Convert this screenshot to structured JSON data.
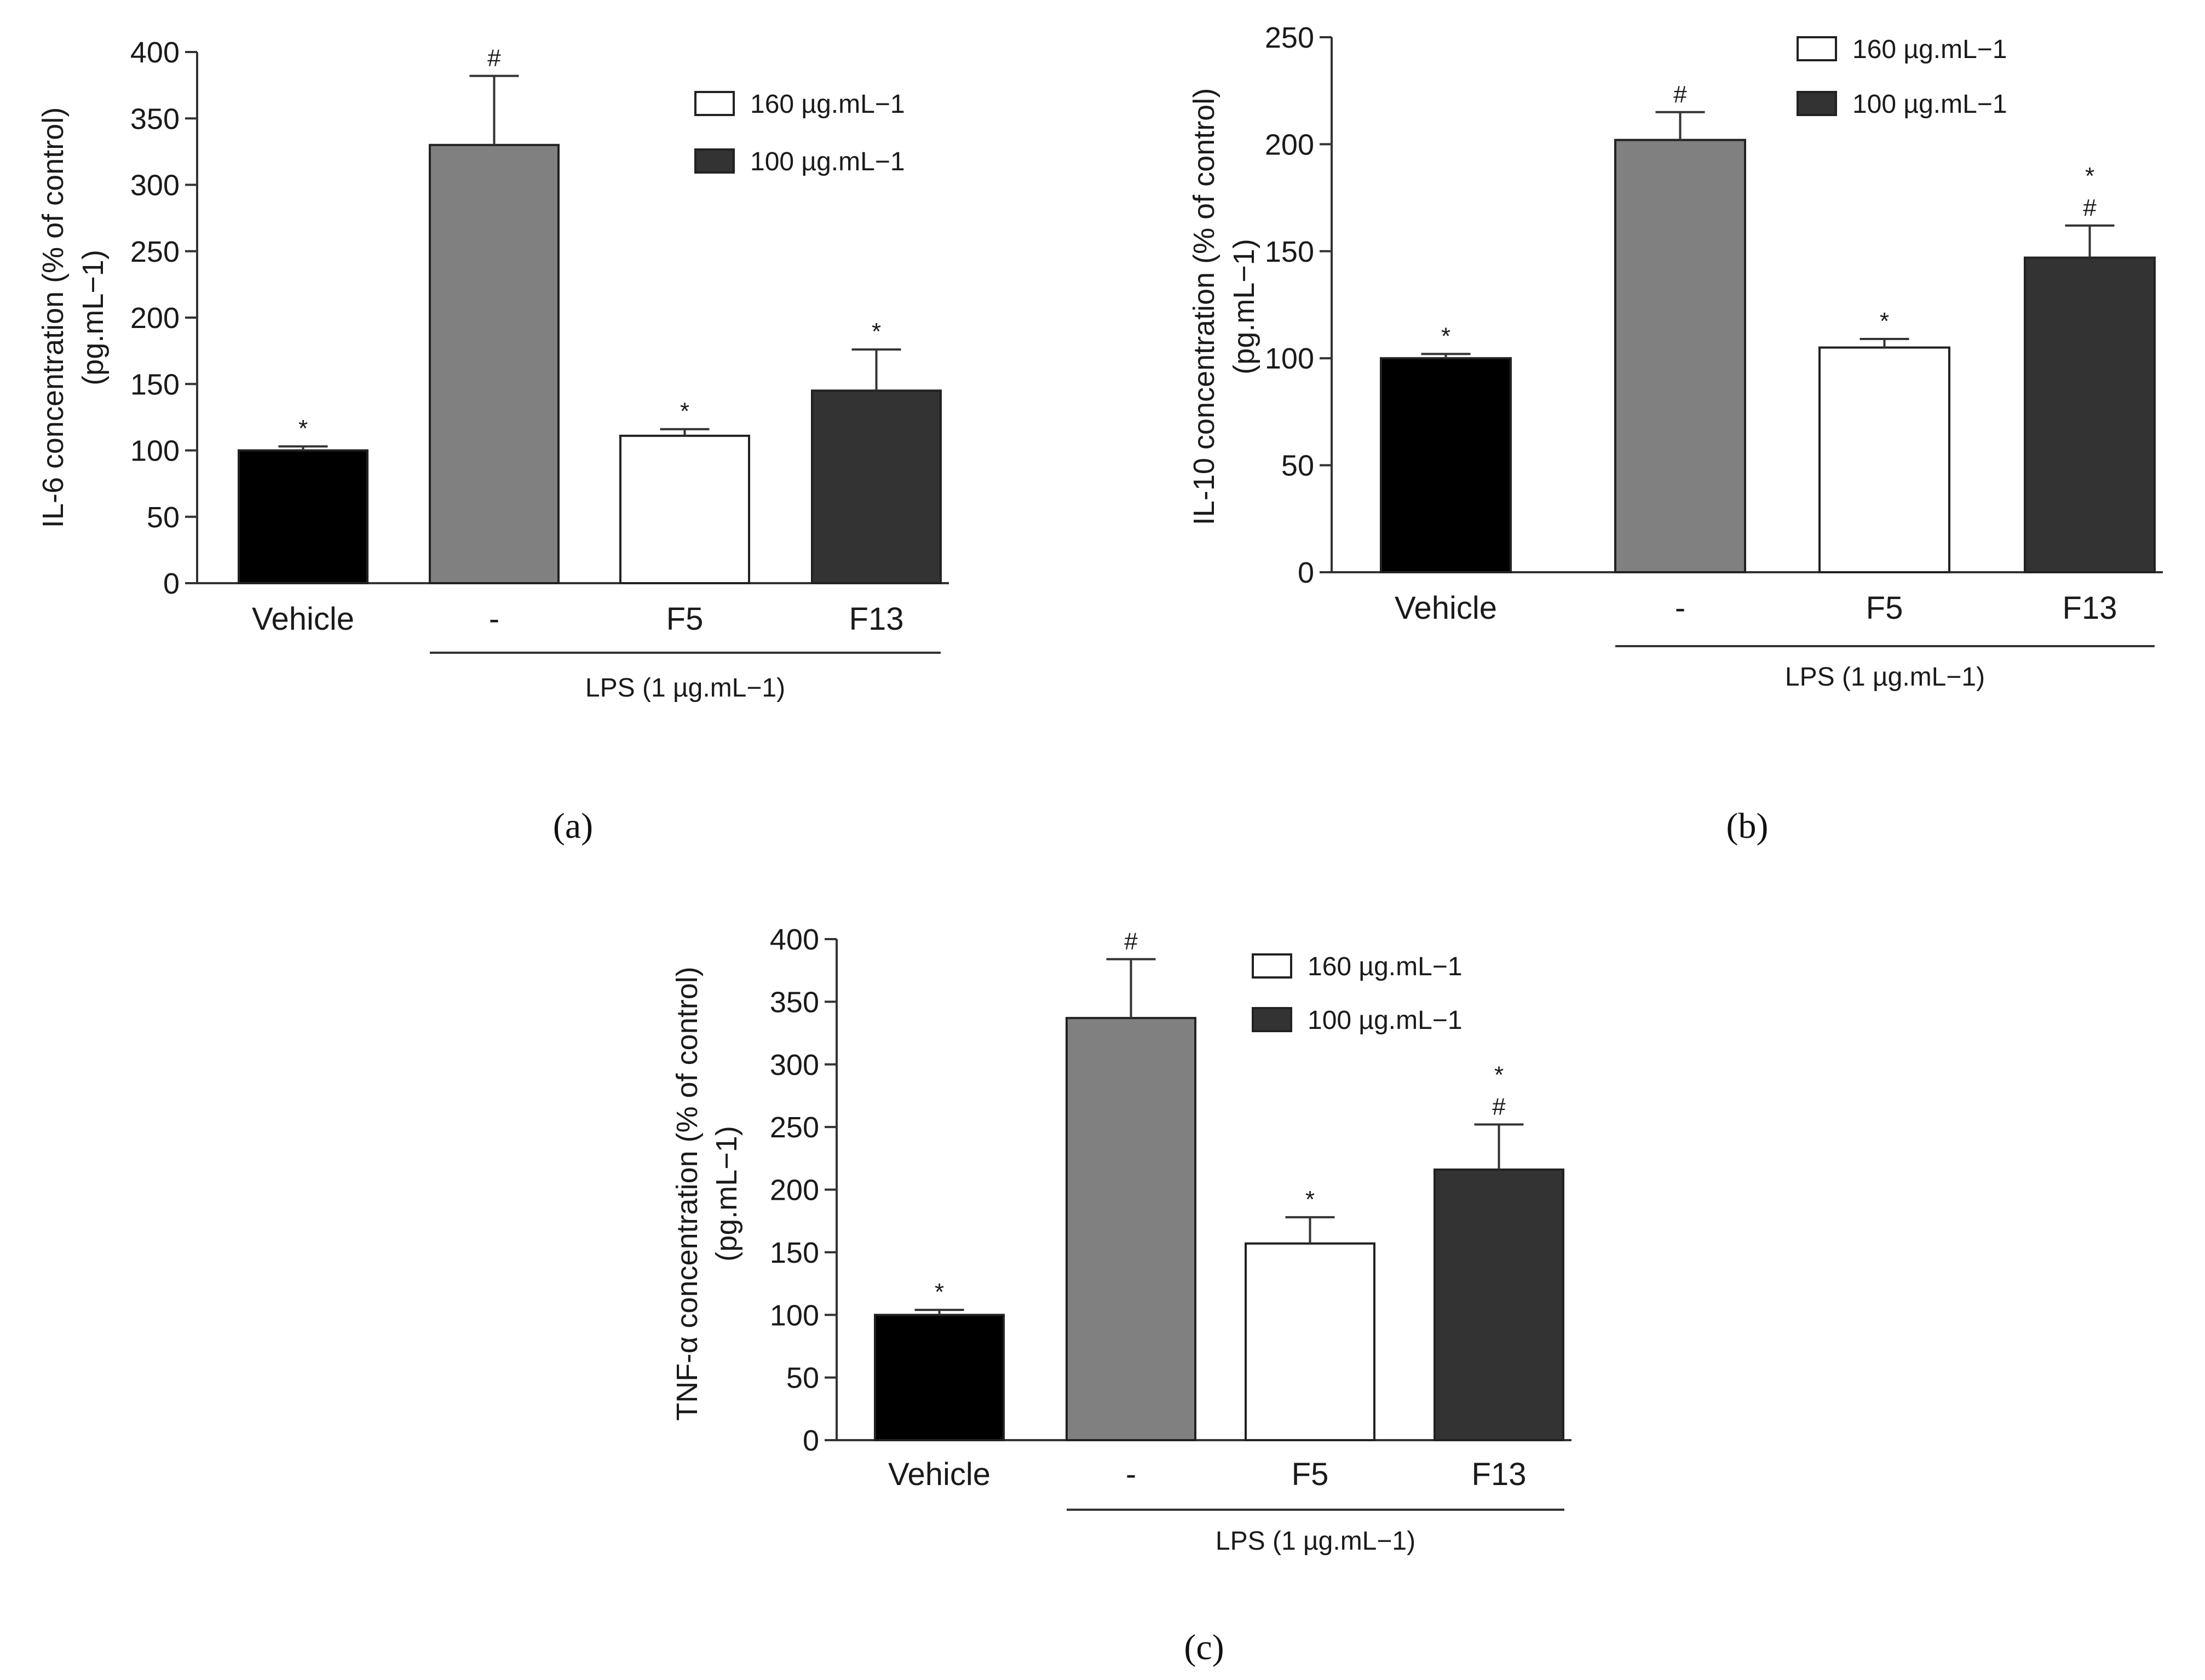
{
  "chart_data": [
    {
      "type": "bar",
      "panel_label": "(a)",
      "categories": [
        "Vehicle",
        "-",
        "F5",
        "F13"
      ],
      "values": [
        100,
        330,
        111,
        145
      ],
      "errors": [
        3,
        52,
        5,
        31
      ],
      "significance": [
        "*",
        "#",
        "*",
        "*"
      ],
      "ylabel_line1": "IL-6 concentration (% of control)",
      "ylabel_line2": "(pg.mL−1)",
      "ylim": [
        0,
        400
      ],
      "yticks": [
        0,
        50,
        100,
        150,
        200,
        250,
        300,
        350,
        400
      ],
      "group_label": "LPS (1 µg.mL−1)",
      "legend": [
        {
          "label": "160 µg.mL−1",
          "color": "#ffffff"
        },
        {
          "label": "100 µg.mL−1",
          "color": "#333333"
        }
      ],
      "bar_colors": [
        "#000000",
        "#808080",
        "#ffffff",
        "#333333"
      ]
    },
    {
      "type": "bar",
      "panel_label": "(b)",
      "categories": [
        "Vehicle",
        "-",
        "F5",
        "F13"
      ],
      "values": [
        100,
        202,
        105,
        147
      ],
      "errors": [
        2,
        13,
        4,
        15
      ],
      "significance": [
        "*",
        "#",
        "*",
        "*\n#"
      ],
      "ylabel_line1": "IL-10 concentration (% of control)",
      "ylabel_line2": "(pg.mL−1)",
      "ylim": [
        0,
        250
      ],
      "yticks": [
        0,
        50,
        100,
        150,
        200,
        250
      ],
      "group_label": "LPS (1 µg.mL−1)",
      "legend": [
        {
          "label": "160 µg.mL−1",
          "color": "#ffffff"
        },
        {
          "label": "100 µg.mL−1",
          "color": "#333333"
        }
      ],
      "bar_colors": [
        "#000000",
        "#808080",
        "#ffffff",
        "#333333"
      ]
    },
    {
      "type": "bar",
      "panel_label": "(c)",
      "categories": [
        "Vehicle",
        "-",
        "F5",
        "F13"
      ],
      "values": [
        100,
        337,
        157,
        216
      ],
      "errors": [
        4,
        47,
        21,
        36
      ],
      "significance": [
        "*",
        "#",
        "*",
        "*\n#"
      ],
      "ylabel_line1": "TNF-α concentration (% of control)",
      "ylabel_line2": "(pg.mL−1)",
      "ylim": [
        0,
        400
      ],
      "yticks": [
        0,
        50,
        100,
        150,
        200,
        250,
        300,
        350,
        400
      ],
      "group_label": "LPS (1 µg.mL−1)",
      "legend": [
        {
          "label": "160 µg.mL−1",
          "color": "#ffffff"
        },
        {
          "label": "100 µg.mL−1",
          "color": "#333333"
        }
      ],
      "bar_colors": [
        "#000000",
        "#808080",
        "#ffffff",
        "#333333"
      ]
    }
  ]
}
